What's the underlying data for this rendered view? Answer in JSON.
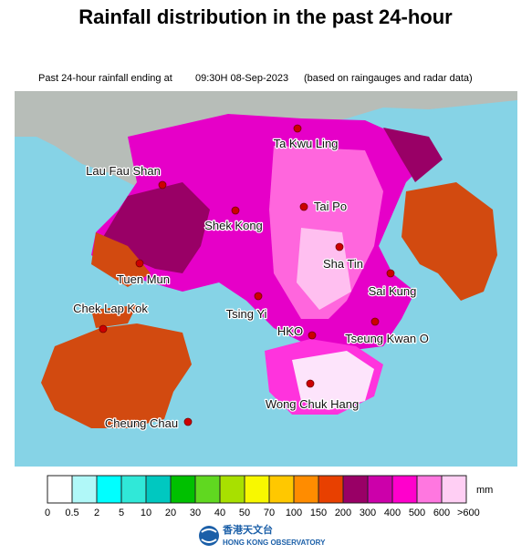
{
  "header": {
    "title": "Rainfall distribution in the past 24-hour",
    "subtitle_prefix": "Past 24-hour rainfall ending at",
    "timestamp": "09:30H 08-Sep-2023",
    "subtitle_suffix": "(based on raingauges and radar data)"
  },
  "map": {
    "places": [
      "Ta Kwu Ling",
      "Lau Fau Shan",
      "Shek Kong",
      "Tai Po",
      "Tuen Mun",
      "Sha Tin",
      "Sai Kung",
      "Chek Lap Kok",
      "Tsing Yi",
      "HKO",
      "Tseung Kwan O",
      "Wong Chuk Hang",
      "Cheung Chau"
    ]
  },
  "legend": {
    "unit": "mm",
    "labels": [
      "0",
      "0.5",
      "2",
      "5",
      "10",
      "20",
      "30",
      "40",
      "50",
      "70",
      "100",
      "150",
      "200",
      "300",
      "400",
      "500",
      "600",
      ">600"
    ],
    "colors": [
      "#ffffff",
      "#b0f8f8",
      "#00ffff",
      "#30e8d8",
      "#00c8c0",
      "#00c000",
      "#60d820",
      "#a8e000",
      "#f8f800",
      "#ffc800",
      "#ff8c00",
      "#e84000",
      "#990066",
      "#cc00aa",
      "#ff00cc",
      "#ff77e0",
      "#ffcff4"
    ]
  },
  "footer": {
    "org_chinese": "香港天文台",
    "org_english": "HONG KONG OBSERVATORY"
  }
}
